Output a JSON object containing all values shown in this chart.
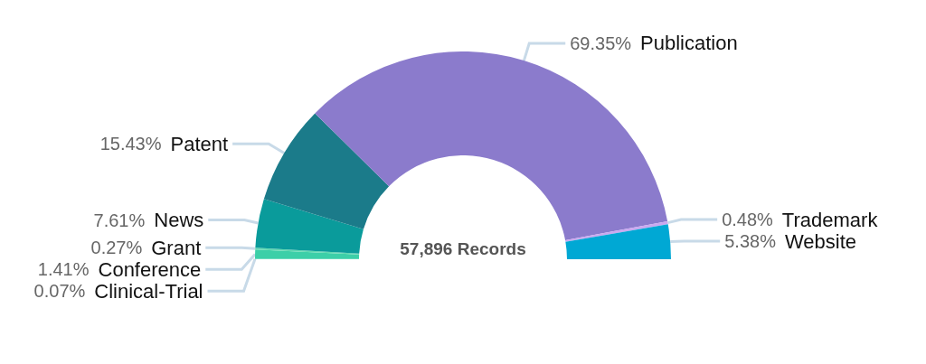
{
  "chart_data": {
    "type": "donut",
    "categories": [
      "Clinical-Trial",
      "Conference",
      "Grant",
      "News",
      "Patent",
      "Publication",
      "Trademark",
      "Website"
    ],
    "values": [
      0.07,
      1.41,
      0.27,
      7.61,
      15.43,
      69.35,
      0.48,
      5.38
    ],
    "value_labels": [
      "0.07%",
      "1.41%",
      "0.27%",
      "7.61%",
      "15.43%",
      "69.35%",
      "0.48%",
      "5.38%"
    ],
    "colors": [
      "#45d4b5",
      "#3ccfa8",
      "#5fd8b0",
      "#0a9b9b",
      "#1b7b8a",
      "#8b7bcc",
      "#c9a8f0",
      "#00a8d4"
    ],
    "annotations": [
      "57,896 Records"
    ],
    "legend": false
  }
}
